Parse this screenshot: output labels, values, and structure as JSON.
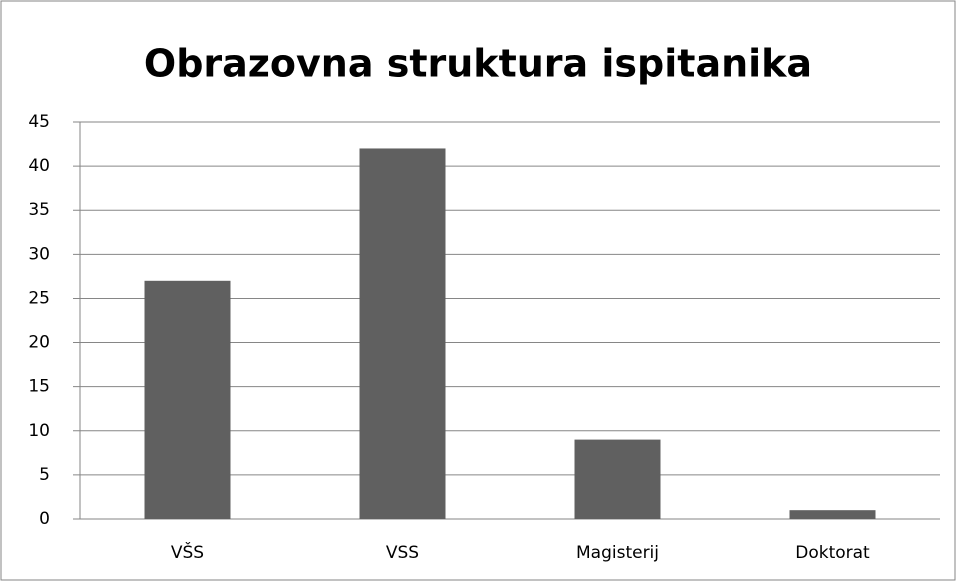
{
  "chart_data": {
    "type": "bar",
    "title": "Obrazovna struktura ispitanika",
    "categories": [
      "VŠS",
      "VSS",
      "Magisterij",
      "Doktorat"
    ],
    "values": [
      27,
      42,
      9,
      1
    ],
    "color": "#606060",
    "ylim": [
      0,
      45
    ],
    "yticks": [
      0,
      5,
      10,
      15,
      20,
      25,
      30,
      35,
      40,
      45
    ],
    "grid": true
  }
}
